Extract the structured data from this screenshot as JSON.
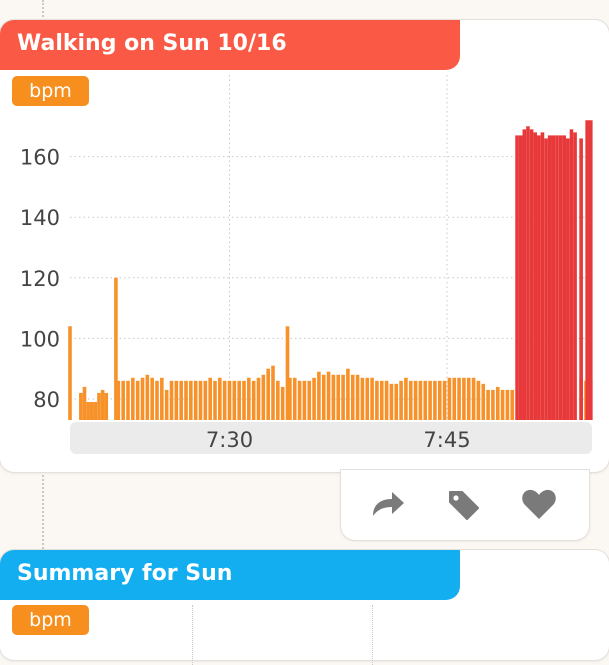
{
  "workout_card": {
    "title": "Walking on Sun 10/16",
    "unit": "bpm",
    "accent_color": "#fa5a45",
    "badge_color": "#f78f1e"
  },
  "chart_data": {
    "type": "bar",
    "ylabel": "bpm",
    "ylim": [
      72,
      176
    ],
    "yticks": [
      80,
      100,
      120,
      140,
      160
    ],
    "xlim": [
      "07:19",
      "07:55"
    ],
    "xticks": [
      {
        "time": "07:30",
        "label": "7:30"
      },
      {
        "time": "07:45",
        "label": "7:45"
      }
    ],
    "grid": true,
    "series": [
      {
        "color": "#f7922a",
        "points": [
          [
            "07:19:00",
            104
          ],
          [
            "07:19:45",
            82
          ],
          [
            "07:20:00",
            84
          ],
          [
            "07:20:15",
            79
          ],
          [
            "07:20:30",
            79
          ],
          [
            "07:20:45",
            79
          ],
          [
            "07:21:00",
            82
          ],
          [
            "07:21:15",
            83
          ],
          [
            "07:21:30",
            82
          ],
          [
            "07:22:10",
            120
          ],
          [
            "07:22:20",
            86
          ],
          [
            "07:22:40",
            86
          ],
          [
            "07:23:00",
            86
          ],
          [
            "07:23:20",
            87
          ],
          [
            "07:23:40",
            86
          ],
          [
            "07:24:00",
            87
          ],
          [
            "07:24:20",
            88
          ],
          [
            "07:24:40",
            87
          ],
          [
            "07:25:00",
            86
          ],
          [
            "07:25:20",
            87
          ],
          [
            "07:25:40",
            83
          ],
          [
            "07:26:00",
            86
          ],
          [
            "07:26:20",
            86
          ],
          [
            "07:26:40",
            86
          ],
          [
            "07:27:00",
            86
          ],
          [
            "07:27:20",
            86
          ],
          [
            "07:27:40",
            86
          ],
          [
            "07:28:00",
            86
          ],
          [
            "07:28:20",
            86
          ],
          [
            "07:28:40",
            87
          ],
          [
            "07:29:00",
            86
          ],
          [
            "07:29:20",
            87
          ],
          [
            "07:29:40",
            86
          ],
          [
            "07:30:00",
            86
          ],
          [
            "07:30:20",
            86
          ],
          [
            "07:30:40",
            86
          ],
          [
            "07:31:00",
            86
          ],
          [
            "07:31:20",
            87
          ],
          [
            "07:31:40",
            86
          ],
          [
            "07:32:00",
            87
          ],
          [
            "07:32:20",
            88
          ],
          [
            "07:32:40",
            90
          ],
          [
            "07:33:00",
            91
          ],
          [
            "07:33:20",
            86
          ],
          [
            "07:33:40",
            84
          ],
          [
            "07:34:00",
            104
          ],
          [
            "07:34:10",
            87
          ],
          [
            "07:34:30",
            87
          ],
          [
            "07:34:50",
            86
          ],
          [
            "07:35:10",
            86
          ],
          [
            "07:35:30",
            86
          ],
          [
            "07:35:50",
            87
          ],
          [
            "07:36:10",
            89
          ],
          [
            "07:36:30",
            88
          ],
          [
            "07:36:50",
            89
          ],
          [
            "07:37:10",
            88
          ],
          [
            "07:37:30",
            88
          ],
          [
            "07:37:50",
            88
          ],
          [
            "07:38:10",
            90
          ],
          [
            "07:38:30",
            88
          ],
          [
            "07:38:50",
            88
          ],
          [
            "07:39:10",
            87
          ],
          [
            "07:39:30",
            87
          ],
          [
            "07:39:50",
            87
          ],
          [
            "07:40:10",
            86
          ],
          [
            "07:40:30",
            86
          ],
          [
            "07:40:50",
            86
          ],
          [
            "07:41:10",
            85
          ],
          [
            "07:41:30",
            85
          ],
          [
            "07:41:50",
            86
          ],
          [
            "07:42:10",
            87
          ],
          [
            "07:42:30",
            86
          ],
          [
            "07:42:50",
            86
          ],
          [
            "07:43:10",
            86
          ],
          [
            "07:43:30",
            86
          ],
          [
            "07:43:50",
            86
          ],
          [
            "07:44:10",
            86
          ],
          [
            "07:44:30",
            86
          ],
          [
            "07:44:50",
            86
          ],
          [
            "07:45:10",
            87
          ],
          [
            "07:45:30",
            87
          ],
          [
            "07:45:50",
            87
          ],
          [
            "07:46:10",
            87
          ],
          [
            "07:46:30",
            87
          ],
          [
            "07:46:50",
            87
          ],
          [
            "07:47:10",
            86
          ],
          [
            "07:47:30",
            85
          ],
          [
            "07:47:50",
            83
          ],
          [
            "07:48:10",
            83
          ],
          [
            "07:48:30",
            84
          ],
          [
            "07:48:50",
            83
          ],
          [
            "07:49:10",
            83
          ],
          [
            "07:49:30",
            83
          ],
          [
            "07:54:15",
            87
          ],
          [
            "07:54:35",
            86
          ],
          [
            "07:54:55",
            86
          ]
        ]
      },
      {
        "color": "#e8393a",
        "points": [
          [
            "07:49:50",
            167
          ],
          [
            "07:50:05",
            167
          ],
          [
            "07:50:20",
            169
          ],
          [
            "07:50:35",
            170
          ],
          [
            "07:50:50",
            169
          ],
          [
            "07:51:05",
            168
          ],
          [
            "07:51:20",
            167
          ],
          [
            "07:51:35",
            168
          ],
          [
            "07:51:50",
            166
          ],
          [
            "07:52:05",
            167
          ],
          [
            "07:52:20",
            167
          ],
          [
            "07:52:35",
            167
          ],
          [
            "07:52:50",
            167
          ],
          [
            "07:53:05",
            167
          ],
          [
            "07:53:20",
            166
          ],
          [
            "07:53:35",
            169
          ],
          [
            "07:53:50",
            168
          ],
          [
            "07:54:15",
            166
          ],
          [
            "07:54:40",
            172
          ],
          [
            "07:54:55",
            172
          ]
        ]
      }
    ]
  },
  "actions": {
    "share_color": "#7a7a7a",
    "tag_color": "#7a7a7a",
    "heart_color": "#7a7a7a"
  },
  "summary_card": {
    "title": "Summary for Sun",
    "unit": "bpm",
    "accent_color": "#12aef0"
  }
}
